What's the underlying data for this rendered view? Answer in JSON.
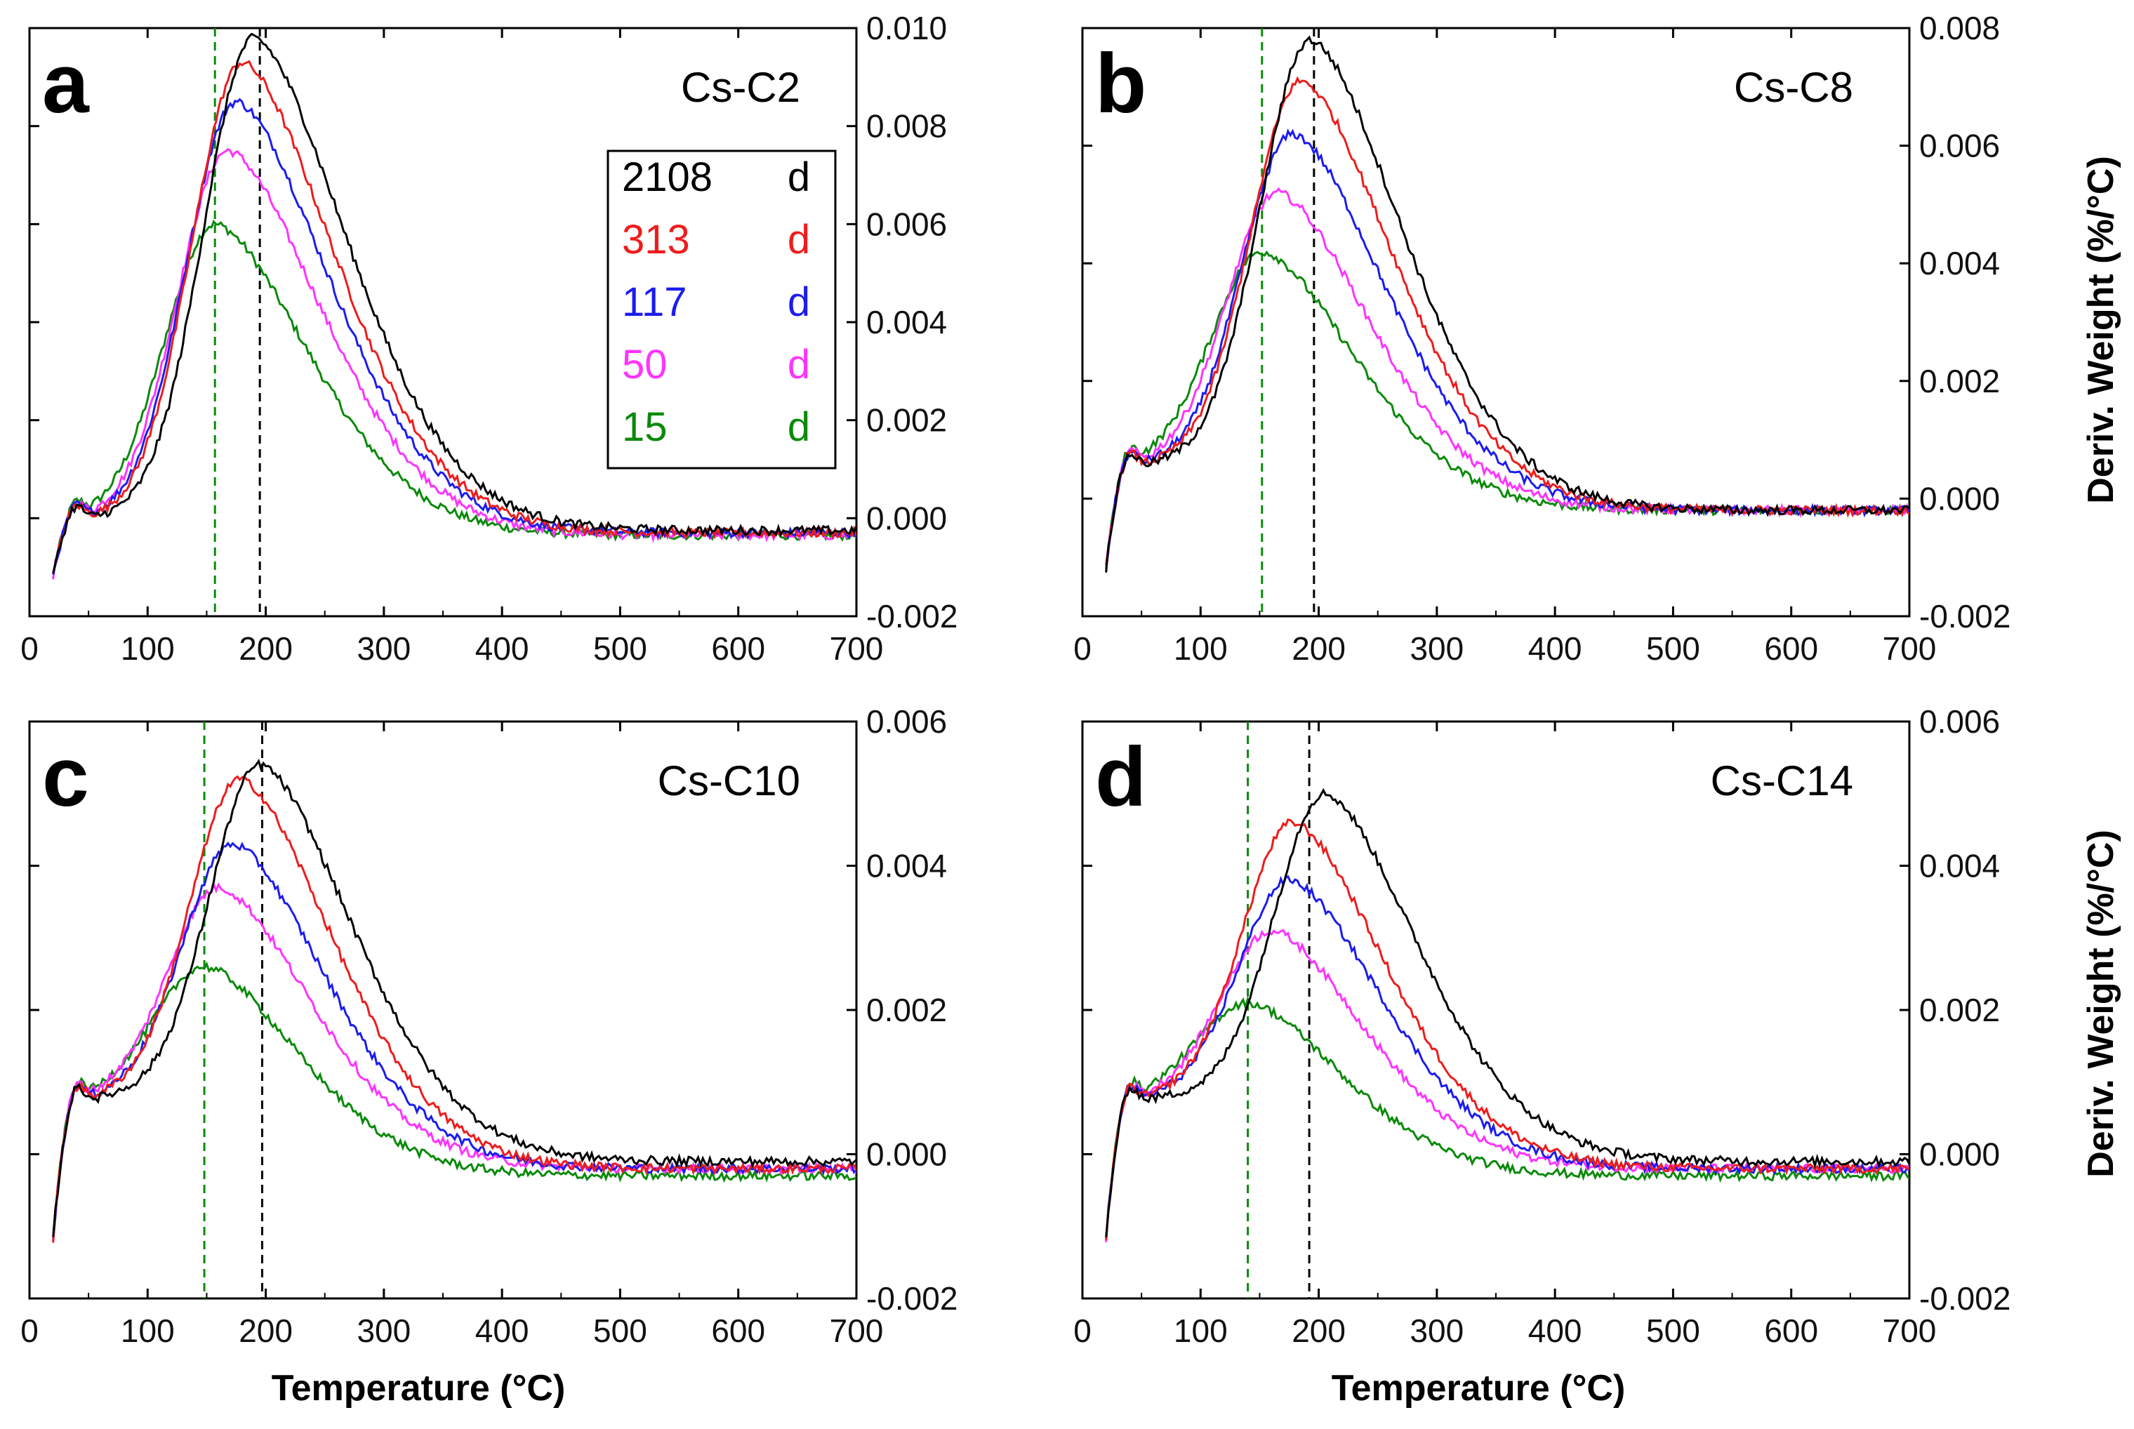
{
  "figure": {
    "xlabel": "Temperature (°C)",
    "ylabel": "Deriv. Weight (%/°C)"
  },
  "legend": [
    {
      "age": "2108",
      "unit": "d",
      "color": "#000000"
    },
    {
      "age": "313",
      "unit": "d",
      "color": "#ee1c1c"
    },
    {
      "age": "117",
      "unit": "d",
      "color": "#1c1cee"
    },
    {
      "age": "50",
      "unit": "d",
      "color": "#ff33ff"
    },
    {
      "age": "15",
      "unit": "d",
      "color": "#0a8a0a"
    }
  ],
  "chart_data": [
    {
      "type": "line",
      "panel": "a",
      "title": "Cs-C2",
      "xlabel": "Temperature (°C)",
      "ylabel": "Deriv. Weight (%/°C)",
      "xlim": [
        0,
        700
      ],
      "ylim": [
        -0.002,
        0.01
      ],
      "x_ticks": [
        "0",
        "100",
        "200",
        "300",
        "400",
        "500",
        "600",
        "700"
      ],
      "y_ticks": [
        "0.010",
        "0.008",
        "0.006",
        "0.004",
        "0.002",
        "0.000",
        "-0.002"
      ],
      "y_tick_values": [
        0.01,
        0.008,
        0.006,
        0.004,
        0.002,
        0.0,
        -0.002
      ],
      "base": 0.0,
      "vlines": [
        {
          "x": 157,
          "color": "#0a8a0a"
        },
        {
          "x": 195,
          "color": "#000000"
        }
      ],
      "series": [
        {
          "name": "2108 d",
          "color": "#000000",
          "peak_x": 190,
          "peak_y": 0.0098,
          "tail": -0.00025
        },
        {
          "name": "313 d",
          "color": "#ee1c1c",
          "peak_x": 180,
          "peak_y": 0.0093,
          "tail": -0.0003
        },
        {
          "name": "117 d",
          "color": "#1c1cee",
          "peak_x": 175,
          "peak_y": 0.0085,
          "tail": -0.0003
        },
        {
          "name": "50 d",
          "color": "#ff33ff",
          "peak_x": 168,
          "peak_y": 0.0075,
          "tail": -0.00035
        },
        {
          "name": "15 d",
          "color": "#0a8a0a",
          "peak_x": 157,
          "peak_y": 0.006,
          "tail": -0.00035
        }
      ]
    },
    {
      "type": "line",
      "panel": "b",
      "title": "Cs-C8",
      "xlabel": "Temperature (°C)",
      "ylabel": "Deriv. Weight (%/°C)",
      "xlim": [
        0,
        700
      ],
      "ylim": [
        -0.002,
        0.008
      ],
      "x_ticks": [
        "0",
        "100",
        "200",
        "300",
        "400",
        "500",
        "600",
        "700"
      ],
      "y_ticks": [
        "0.008",
        "0.006",
        "0.004",
        "0.002",
        "0.000",
        "-0.002"
      ],
      "y_tick_values": [
        0.008,
        0.006,
        0.004,
        0.002,
        0.0,
        -0.002
      ],
      "base": 0.0006,
      "vlines": [
        {
          "x": 152,
          "color": "#0a8a0a"
        },
        {
          "x": 196,
          "color": "#000000"
        }
      ],
      "series": [
        {
          "name": "2108 d",
          "color": "#000000",
          "peak_x": 193,
          "peak_y": 0.0078,
          "tail": -0.0002
        },
        {
          "name": "313 d",
          "color": "#ee1c1c",
          "peak_x": 185,
          "peak_y": 0.0071,
          "tail": -0.0002
        },
        {
          "name": "117 d",
          "color": "#1c1cee",
          "peak_x": 178,
          "peak_y": 0.0062,
          "tail": -0.0002
        },
        {
          "name": "50 d",
          "color": "#ff33ff",
          "peak_x": 165,
          "peak_y": 0.0052,
          "tail": -0.0002
        },
        {
          "name": "15 d",
          "color": "#0a8a0a",
          "peak_x": 152,
          "peak_y": 0.0042,
          "tail": -0.0002
        }
      ]
    },
    {
      "type": "line",
      "panel": "c",
      "title": "Cs-C10",
      "xlabel": "Temperature (°C)",
      "ylabel": "Deriv. Weight (%/°C)",
      "xlim": [
        0,
        700
      ],
      "ylim": [
        -0.002,
        0.006
      ],
      "x_ticks": [
        "0",
        "100",
        "200",
        "300",
        "400",
        "500",
        "600",
        "700"
      ],
      "y_ticks": [
        "0.006",
        "0.004",
        "0.002",
        "0.000",
        "-0.002"
      ],
      "y_tick_values": [
        0.006,
        0.004,
        0.002,
        0.0,
        -0.002
      ],
      "base": 0.0008,
      "vlines": [
        {
          "x": 148,
          "color": "#0a8a0a"
        },
        {
          "x": 197,
          "color": "#000000"
        }
      ],
      "series": [
        {
          "name": "2108 d",
          "color": "#000000",
          "peak_x": 195,
          "peak_y": 0.0054,
          "tail": -0.0001
        },
        {
          "name": "313 d",
          "color": "#ee1c1c",
          "peak_x": 178,
          "peak_y": 0.0052,
          "tail": -0.0002
        },
        {
          "name": "117 d",
          "color": "#1c1cee",
          "peak_x": 172,
          "peak_y": 0.0043,
          "tail": -0.0002
        },
        {
          "name": "50 d",
          "color": "#ff33ff",
          "peak_x": 160,
          "peak_y": 0.0037,
          "tail": -0.0002
        },
        {
          "name": "15 d",
          "color": "#0a8a0a",
          "peak_x": 148,
          "peak_y": 0.0026,
          "tail": -0.0003
        }
      ]
    },
    {
      "type": "line",
      "panel": "d",
      "title": "Cs-C14",
      "xlabel": "Temperature (°C)",
      "ylabel": "Deriv. Weight (%/°C)",
      "xlim": [
        0,
        700
      ],
      "ylim": [
        -0.002,
        0.006
      ],
      "x_ticks": [
        "0",
        "100",
        "200",
        "300",
        "400",
        "500",
        "600",
        "700"
      ],
      "y_ticks": [
        "0.006",
        "0.004",
        "0.002",
        "0.000",
        "-0.002"
      ],
      "y_tick_values": [
        0.006,
        0.004,
        0.002,
        0.0,
        -0.002
      ],
      "base": 0.0008,
      "vlines": [
        {
          "x": 140,
          "color": "#0a8a0a"
        },
        {
          "x": 192,
          "color": "#000000"
        }
      ],
      "series": [
        {
          "name": "2108 d",
          "color": "#000000",
          "peak_x": 205,
          "peak_y": 0.005,
          "tail": -0.0001
        },
        {
          "name": "313 d",
          "color": "#ee1c1c",
          "peak_x": 178,
          "peak_y": 0.0046,
          "tail": -0.0002
        },
        {
          "name": "117 d",
          "color": "#1c1cee",
          "peak_x": 175,
          "peak_y": 0.0038,
          "tail": -0.0002
        },
        {
          "name": "50 d",
          "color": "#ff33ff",
          "peak_x": 160,
          "peak_y": 0.0031,
          "tail": -0.0002
        },
        {
          "name": "15 d",
          "color": "#0a8a0a",
          "peak_x": 140,
          "peak_y": 0.0021,
          "tail": -0.0003
        }
      ]
    }
  ]
}
